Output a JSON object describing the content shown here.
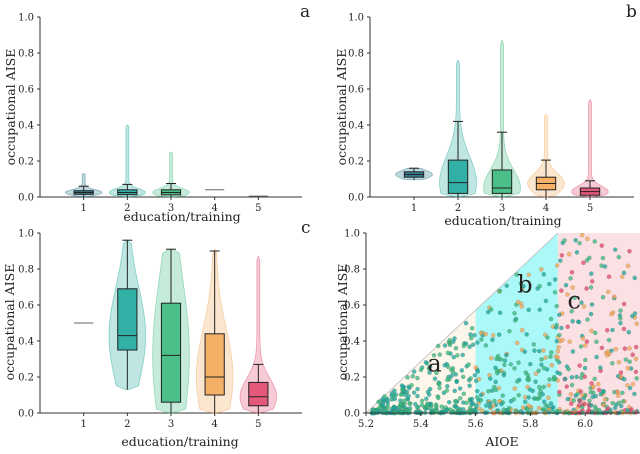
{
  "colors": {
    "edu1": "#1c6f86",
    "edu2": "#1aa69a",
    "edu3": "#35b779",
    "edu4": "#f2a654",
    "edu5": "#e0456a",
    "region_a": "#fbf6e6",
    "region_b": "#66f2f2",
    "region_c": "#fbdcdf"
  },
  "chart_data": [
    {
      "type": "violin-box",
      "panel": "a",
      "xlabel": "education/training",
      "ylabel": "occupational AISE",
      "ylim": [
        0,
        1
      ],
      "yticks": [
        "0.0",
        "0.2",
        "0.4",
        "0.6",
        "0.8",
        "1.0"
      ],
      "categories": [
        "1",
        "2",
        "3",
        "4",
        "5"
      ],
      "boxes": [
        {
          "min": 0.0,
          "q1": 0.015,
          "median": 0.025,
          "q3": 0.035,
          "max": 0.06,
          "vmax": 0.13
        },
        {
          "min": 0.0,
          "q1": 0.013,
          "median": 0.025,
          "q3": 0.04,
          "max": 0.07,
          "vmax": 0.4
        },
        {
          "min": 0.0,
          "q1": 0.012,
          "median": 0.025,
          "q3": 0.04,
          "max": 0.075,
          "vmax": 0.25
        },
        {
          "median": 0.04
        },
        {
          "median": 0.005
        }
      ]
    },
    {
      "type": "violin-box",
      "panel": "b",
      "xlabel": "education/training",
      "ylabel": "occupational AISE",
      "ylim": [
        0,
        1
      ],
      "yticks": [
        "0.0",
        "0.2",
        "0.4",
        "0.6",
        "0.8",
        "1.0"
      ],
      "categories": [
        "1",
        "2",
        "3",
        "4",
        "5"
      ],
      "boxes": [
        {
          "min": 0.095,
          "q1": 0.11,
          "median": 0.125,
          "q3": 0.14,
          "max": 0.16,
          "vmax": 0.16
        },
        {
          "min": 0.0,
          "q1": 0.02,
          "median": 0.08,
          "q3": 0.205,
          "max": 0.42,
          "vmax": 0.76
        },
        {
          "min": 0.0,
          "q1": 0.02,
          "median": 0.05,
          "q3": 0.15,
          "max": 0.36,
          "vmax": 0.87
        },
        {
          "min": 0.0,
          "q1": 0.04,
          "median": 0.075,
          "q3": 0.11,
          "max": 0.205,
          "vmax": 0.46
        },
        {
          "min": 0.0,
          "q1": 0.01,
          "median": 0.03,
          "q3": 0.05,
          "max": 0.09,
          "vmax": 0.54
        }
      ]
    },
    {
      "type": "violin-box",
      "panel": "c",
      "xlabel": "education/training",
      "ylabel": "occupational AISE",
      "ylim": [
        0,
        1
      ],
      "yticks": [
        "0.0",
        "0.2",
        "0.4",
        "0.6",
        "0.8",
        "1.0"
      ],
      "categories": [
        "1",
        "2",
        "3",
        "4",
        "5"
      ],
      "boxes": [
        {
          "median": 0.5
        },
        {
          "min": 0.13,
          "q1": 0.35,
          "median": 0.43,
          "q3": 0.69,
          "max": 0.96,
          "vmin": 0.13,
          "vmax": 0.96
        },
        {
          "min": 0.0,
          "q1": 0.06,
          "median": 0.32,
          "q3": 0.61,
          "max": 0.91,
          "vmin": 0.0,
          "vmax": 0.91
        },
        {
          "min": 0.0,
          "q1": 0.1,
          "median": 0.2,
          "q3": 0.44,
          "max": 0.9,
          "vmin": 0.0,
          "vmax": 0.91
        },
        {
          "min": 0.0,
          "q1": 0.04,
          "median": 0.09,
          "q3": 0.17,
          "max": 0.27,
          "vmin": 0.0,
          "vmax": 0.87
        }
      ]
    },
    {
      "type": "scatter",
      "panel": "c-right",
      "xlabel": "AIOE",
      "ylabel": "occupational AISE",
      "xlim": [
        5.2,
        6.2
      ],
      "ylim": [
        0,
        1
      ],
      "xticks": [
        "5.2",
        "5.4",
        "5.6",
        "5.8",
        "6.0"
      ],
      "yticks": [
        "0.0",
        "0.2",
        "0.4",
        "0.6",
        "0.8",
        "1.0"
      ],
      "regions": [
        {
          "label": "a",
          "x_from": 5.2,
          "x_to": 5.6
        },
        {
          "label": "b",
          "x_from": 5.6,
          "x_to": 5.9
        },
        {
          "label": "c",
          "x_from": 5.9,
          "x_to": 6.2
        }
      ],
      "boundary_line": {
        "from": [
          5.2,
          0.0
        ],
        "to": [
          5.9,
          1.0
        ]
      },
      "point_count": 800
    }
  ]
}
